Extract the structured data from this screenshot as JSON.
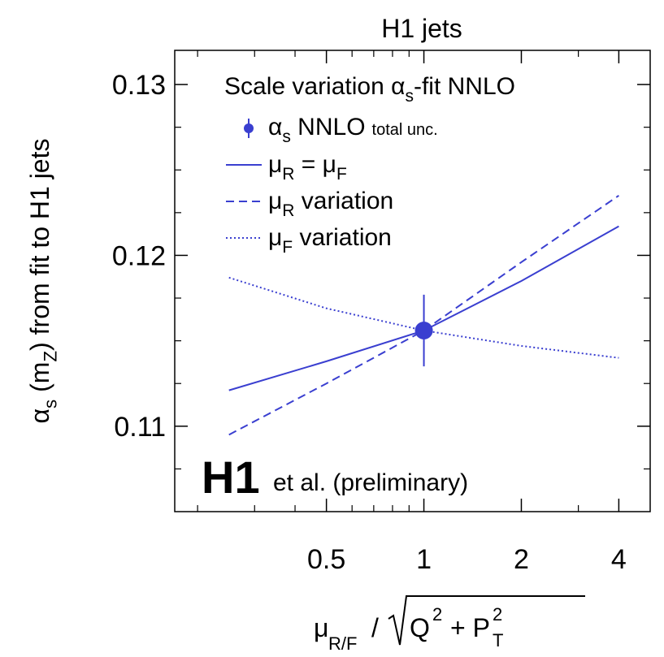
{
  "chart_data": {
    "type": "line",
    "title": "H1 jets",
    "ylabel": [
      "α",
      "s",
      " (m",
      "Z",
      ") from fit to H1 jets"
    ],
    "xlabel": [
      "μ",
      "R/F",
      "/",
      "Q",
      "2",
      "+ P",
      "2",
      "T"
    ],
    "legend_title": [
      "Scale variation α",
      "s",
      "-fit NNLO"
    ],
    "annotation": {
      "logo": "H1",
      "text": "et al. (preliminary)"
    },
    "xscale": "log",
    "xlim": [
      0.17,
      5
    ],
    "xticks": [
      0.5,
      1,
      2,
      4
    ],
    "xminorticks": [
      0.2,
      0.3,
      0.4,
      0.6,
      0.7,
      0.8,
      0.9,
      3
    ],
    "ylim": [
      0.105,
      0.132
    ],
    "yticks": [
      0.11,
      0.12,
      0.13
    ],
    "yminorticks": [
      0.1075,
      0.1125,
      0.115,
      0.1175,
      0.1225,
      0.125,
      0.1275
    ],
    "x": [
      0.25,
      0.5,
      1,
      2,
      4
    ],
    "point": {
      "name": [
        "α",
        "s",
        " NNLO"
      ],
      "note": "total unc.",
      "x": 1,
      "y": 0.1156,
      "err": 0.0021,
      "color": "#3a3fd0"
    },
    "series": [
      {
        "name": [
          "μ",
          "R",
          " = μ",
          "F"
        ],
        "style": "solid",
        "color": "#3a3fd0",
        "values": [
          0.1121,
          0.1138,
          0.1156,
          0.1185,
          0.1217
        ]
      },
      {
        "name": [
          "μ",
          "R",
          " variation"
        ],
        "style": "dashed",
        "color": "#3a3fd0",
        "values": [
          0.1095,
          0.1125,
          0.1156,
          0.1196,
          0.1235
        ]
      },
      {
        "name": [
          "μ",
          "F",
          " variation"
        ],
        "style": "dotted",
        "color": "#3a3fd0",
        "values": [
          0.1187,
          0.1169,
          0.1156,
          0.1147,
          0.114
        ]
      }
    ]
  }
}
